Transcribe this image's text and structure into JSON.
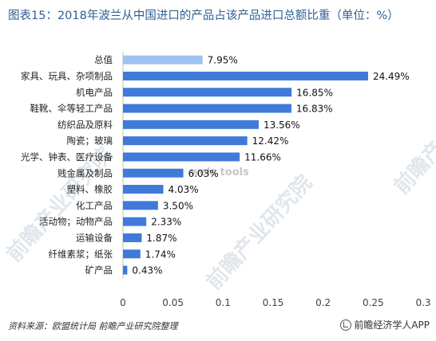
{
  "title": "图表15：2018年波兰从中国进口的产品占该产品进口总额比重（单位：%）",
  "chart_data": {
    "type": "bar",
    "orientation": "horizontal",
    "categories": [
      "总值",
      "家具、玩具、杂项制品",
      "机电产品",
      "鞋靴、伞等轻工产品",
      "纺织品及原料",
      "陶瓷；玻璃",
      "光学、钟表、医疗设备",
      "贱金属及制品",
      "塑料、橡胶",
      "化工产品",
      "活动物；动物产品",
      "运输设备",
      "纤维素浆；纸张",
      "矿产品"
    ],
    "values": [
      0.0795,
      0.2449,
      0.1685,
      0.1683,
      0.1356,
      0.1242,
      0.1166,
      0.0603,
      0.0403,
      0.035,
      0.0233,
      0.0187,
      0.0174,
      0.0043
    ],
    "data_labels": [
      "7.95%",
      "24.49%",
      "16.85%",
      "16.83%",
      "13.56%",
      "12.42%",
      "11.66%",
      "6.03%",
      "4.03%",
      "3.50%",
      "2.33%",
      "1.87%",
      "1.74%",
      "0.43%"
    ],
    "xlim": [
      0,
      0.3
    ],
    "xticks": [
      "0",
      "0.05",
      "0.1",
      "0.15",
      "0.2",
      "0.25",
      "0.3"
    ],
    "xtick_values": [
      0,
      0.05,
      0.1,
      0.15,
      0.2,
      0.25,
      0.3
    ],
    "grid": false,
    "colors": {
      "highlight": "#9dc3f0",
      "bar": "#3f7ad9"
    }
  },
  "watermarks": {
    "brand": "前瞻产业研究院",
    "tool": "wels tools"
  },
  "footer": {
    "source": "资料来源：欧盟统计局 前瞻产业研究院整理",
    "brand": "前瞻经济学人APP",
    "brand_icon": "qianzhan-logo-icon"
  }
}
